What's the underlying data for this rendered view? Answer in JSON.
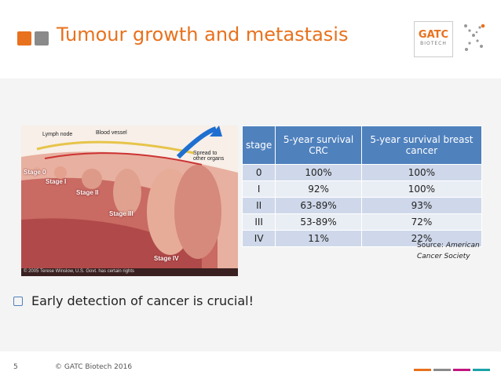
{
  "header": {
    "title": "Tumour growth and metastasis",
    "logo": {
      "name": "GATC",
      "sub": "BIOTECH"
    }
  },
  "figure": {
    "labels": {
      "lymph_node": "Lymph node",
      "blood_vessel": "Blood vessel",
      "spread": "Spread to other organs",
      "stage_0": "Stage 0",
      "stage_1": "Stage I",
      "stage_2": "Stage II",
      "stage_3": "Stage III",
      "stage_4": "Stage IV"
    },
    "credit": "© 2005 Terese Winslow, U.S. Govt. has certain rights"
  },
  "table": {
    "columns": [
      "stage",
      "5-year survival CRC",
      "5-year survival breast cancer"
    ],
    "rows": [
      [
        "0",
        "100%",
        "100%"
      ],
      [
        "I",
        "92%",
        "100%"
      ],
      [
        "II",
        "63-89%",
        "93%"
      ],
      [
        "III",
        "53-89%",
        "72%"
      ],
      [
        "IV",
        "11%",
        "22%"
      ]
    ]
  },
  "source": {
    "prefix": "Source:",
    "text": "American Cancer Society"
  },
  "bullets": [
    "Early detection of cancer is crucial!"
  ],
  "footer": {
    "page": "5",
    "copyright": "© GATC Biotech 2016"
  }
}
